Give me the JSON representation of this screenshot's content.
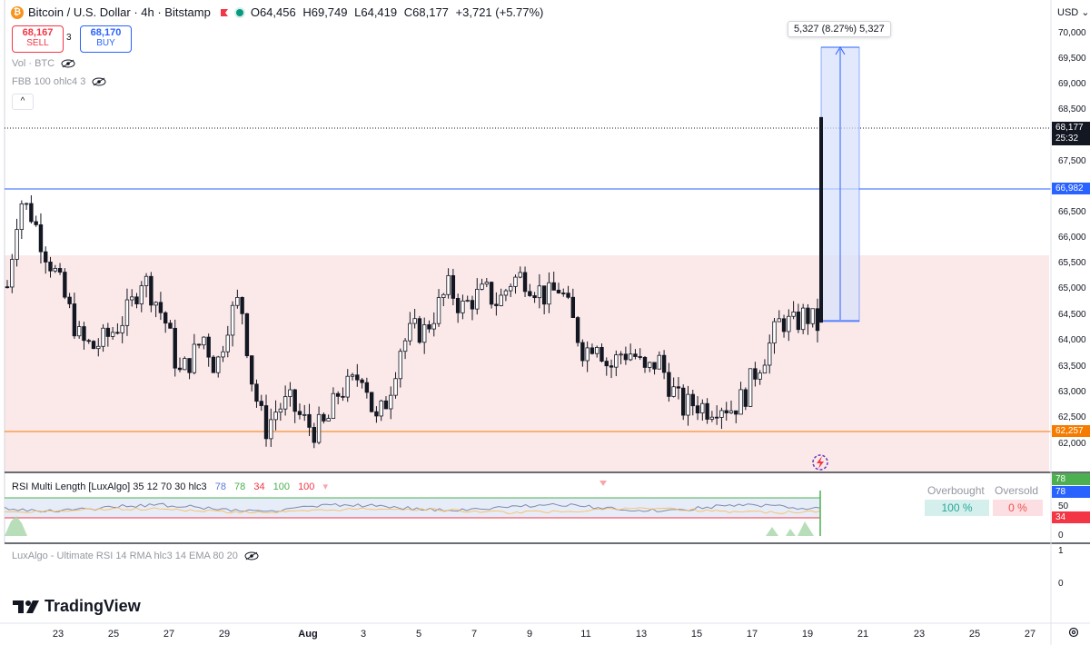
{
  "header": {
    "coin_glyph": "₿",
    "title": "Bitcoin / U.S. Dollar · 4h · Bitstamp",
    "open": "O64,456",
    "high": "H69,749",
    "low": "L64,419",
    "close": "C68,177",
    "change": "+3,721 (+5.77%)"
  },
  "trade": {
    "sell_price": "68,167",
    "sell_label": "SELL",
    "spread": "3",
    "buy_price": "68,170",
    "buy_label": "BUY"
  },
  "indicators": {
    "vol": "Vol · BTC",
    "fbb": "FBB 100 ohlc4 3",
    "collapse": "^",
    "ultimate_rsi": "LuxAlgo - Ultimate RSI 14 RMA hlc3 14 EMA 80 20"
  },
  "rsi_panel": {
    "title": "RSI Multi Length [LuxAlgo] 35 12 70 30 hlc3",
    "v1": "78",
    "v2": "78",
    "v3": "34",
    "v4": "100",
    "v5": "100",
    "overbought_label": "Overbought",
    "oversold_label": "Oversold",
    "overbought_value": "100 %",
    "oversold_value": "0 %",
    "axis": [
      "50",
      "0"
    ],
    "badge_78a": "78",
    "badge_78b": "78",
    "badge_34": "34"
  },
  "lower_axis": [
    "1",
    "0"
  ],
  "currency": "USD",
  "price_axis": [
    "70,000",
    "69,500",
    "69,000",
    "68,500",
    "67,500",
    "67,000",
    "66,500",
    "66,000",
    "65,500",
    "65,000",
    "64,500",
    "64,000",
    "63,500",
    "63,000",
    "62,500",
    "62,000"
  ],
  "price_badges": {
    "last": "68,177",
    "countdown": "25:32",
    "level_blue": "66,982",
    "level_orange": "62,257"
  },
  "measure_tooltip": "5,327 (8.27%) 5,327",
  "date_axis": [
    "23",
    "25",
    "27",
    "29",
    "Aug",
    "3",
    "5",
    "7",
    "9",
    "11",
    "13",
    "15",
    "17",
    "19",
    "21",
    "23",
    "25",
    "27"
  ],
  "brand": "TradingView",
  "colors": {
    "up": "#131722",
    "zone": "#fbe9ea",
    "blue_line": "#2962ff",
    "orange_line": "#f57c00",
    "measure": "#d6e0fb"
  },
  "chart_data": {
    "type": "candlestick",
    "symbol": "BTCUSD",
    "interval": "4h",
    "ylim": [
      61800,
      70300
    ],
    "close_path": [
      65100,
      66700,
      66400,
      65800,
      65300,
      64700,
      64100,
      64000,
      64150,
      64400,
      64700,
      65300,
      64900,
      64400,
      63500,
      63800,
      64200,
      63600,
      64500,
      64900,
      63300,
      62500,
      62900,
      63000,
      62700,
      62500,
      62600,
      63200,
      63300,
      63600,
      62600,
      63100,
      64000,
      64300,
      64300,
      64700,
      65100,
      64700,
      64900,
      65000,
      64800,
      65200,
      65300,
      65100,
      64900,
      65100,
      64500,
      63900,
      64200,
      63600,
      63900,
      63900,
      63500,
      63800,
      63300,
      62900,
      63000,
      62900,
      63000,
      62900,
      63100,
      63600,
      64000,
      64500,
      64400,
      64600,
      64400,
      68177
    ],
    "levels": [
      66982,
      62257
    ],
    "zone": [
      61900,
      65700
    ],
    "measure": {
      "from": 64419,
      "to": 69746,
      "change": "5,327 (8.27%)"
    }
  }
}
